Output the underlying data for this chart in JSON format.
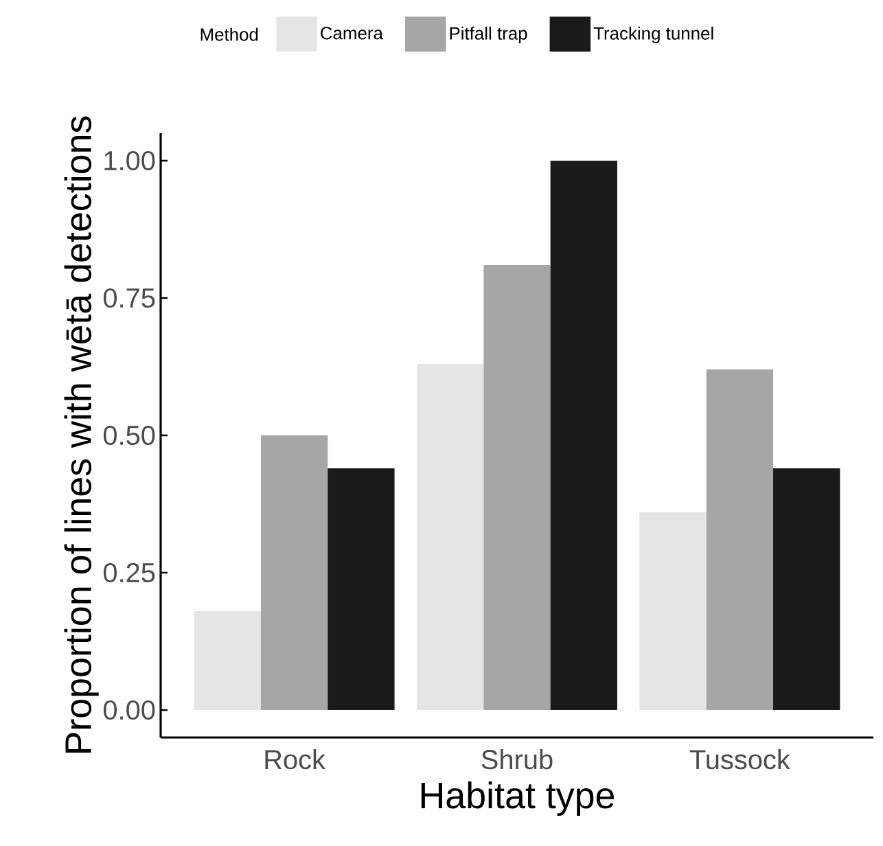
{
  "chart_data": {
    "type": "bar",
    "xlabel": "Habitat type",
    "ylabel": "Proportion of lines with wētā detections",
    "legend_title": "Method",
    "legend": "top",
    "categories": [
      "Rock",
      "Shrub",
      "Tussock"
    ],
    "series": [
      {
        "name": "Camera",
        "color": "#e5e5e5",
        "values": [
          0.18,
          0.63,
          0.36
        ]
      },
      {
        "name": "Pitfall trap",
        "color": "#a6a6a6",
        "values": [
          0.5,
          0.81,
          0.62
        ]
      },
      {
        "name": "Tracking tunnel",
        "color": "#1a1a1a",
        "values": [
          0.44,
          1.0,
          0.44
        ]
      }
    ],
    "ylim": [
      -0.05,
      1.05
    ],
    "yticks": [
      {
        "value": 0,
        "label": "0.00"
      },
      {
        "value": 0.25,
        "label": "0.25"
      },
      {
        "value": 0.5,
        "label": "0.50"
      },
      {
        "value": 0.75,
        "label": "0.75"
      },
      {
        "value": 1,
        "label": "1.00"
      }
    ],
    "grid": false
  }
}
